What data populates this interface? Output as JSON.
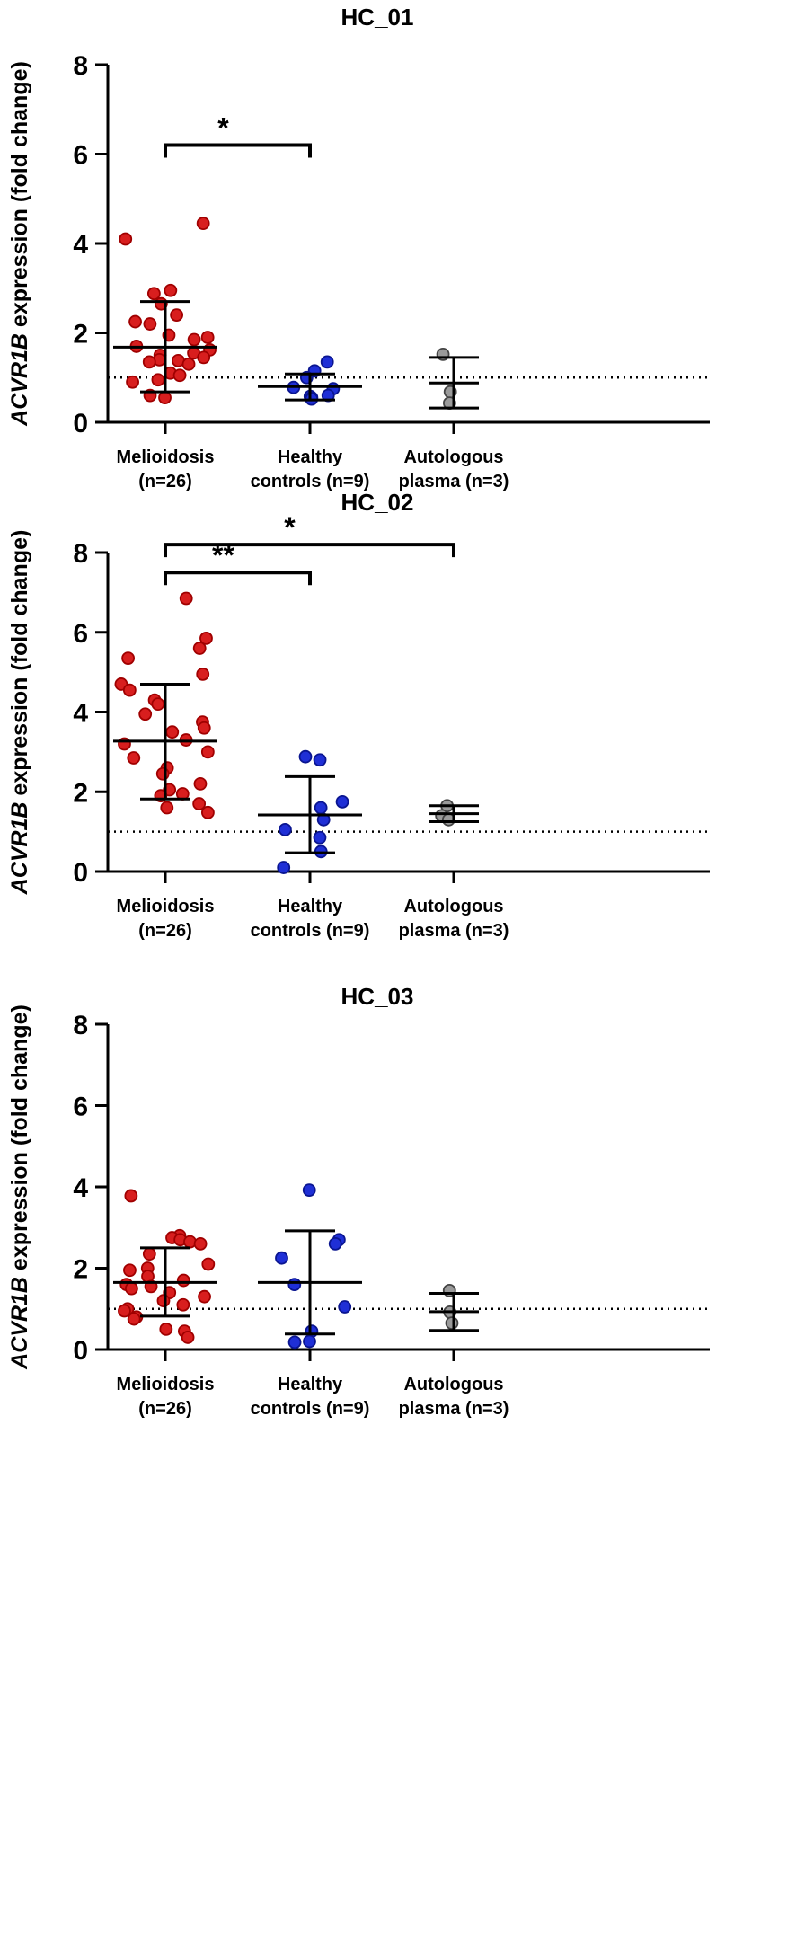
{
  "colors": {
    "melioidosis": "#d81e1e",
    "melioidosis_edge": "#a00000",
    "healthy": "#1f2fd6",
    "healthy_edge": "#0a1590",
    "autologous": "#9a9a9a",
    "autologous_edge": "#444444",
    "axis": "#000000"
  },
  "chart_data": [
    {
      "type": "scatter",
      "title": "HC_01",
      "ylabel_italic": "ACVR1B",
      "ylabel_rest": " expression (fold change)",
      "ylim": [
        0,
        8
      ],
      "yticks": [
        0,
        2,
        4,
        6,
        8
      ],
      "reference_line": 1,
      "categories": [
        {
          "line1": "Melioidosis",
          "line2": "(n=26)"
        },
        {
          "line1": "Healthy",
          "line2": "controls (n=9)"
        },
        {
          "line1": "Autologous",
          "line2": "plasma (n=3)"
        }
      ],
      "series": [
        {
          "name": "Melioidosis",
          "mean": 1.68,
          "sd_low": 0.68,
          "sd_high": 2.7,
          "values": [
            4.45,
            4.1,
            2.95,
            2.88,
            2.65,
            2.4,
            2.25,
            2.2,
            1.95,
            1.9,
            1.85,
            1.7,
            1.62,
            1.55,
            1.5,
            1.45,
            1.4,
            1.38,
            1.35,
            1.3,
            1.1,
            1.05,
            0.95,
            0.9,
            0.6,
            0.55
          ]
        },
        {
          "name": "Healthy controls",
          "mean": 0.8,
          "sd_low": 0.5,
          "sd_high": 1.08,
          "values": [
            1.35,
            1.15,
            1.0,
            0.78,
            0.75,
            0.6,
            0.58,
            0.55,
            0.52
          ]
        },
        {
          "name": "Autologous plasma",
          "mean": 0.88,
          "sd_low": 0.32,
          "sd_high": 1.45,
          "values": [
            1.52,
            0.68,
            0.43
          ]
        }
      ],
      "significance": [
        {
          "from": 0,
          "to": 1,
          "label": "*"
        }
      ]
    },
    {
      "type": "scatter",
      "title": "HC_02",
      "ylabel_italic": "ACVR1B",
      "ylabel_rest": " expression (fold change)",
      "ylim": [
        0,
        8
      ],
      "yticks": [
        0,
        2,
        4,
        6,
        8
      ],
      "reference_line": 1,
      "categories": [
        {
          "line1": "Melioidosis",
          "line2": "(n=26)"
        },
        {
          "line1": "Healthy",
          "line2": "controls (n=9)"
        },
        {
          "line1": "Autologous",
          "line2": "plasma (n=3)"
        }
      ],
      "series": [
        {
          "name": "Melioidosis",
          "mean": 3.27,
          "sd_low": 1.82,
          "sd_high": 4.7,
          "values": [
            6.85,
            5.85,
            5.6,
            5.35,
            4.95,
            4.7,
            4.55,
            4.3,
            4.2,
            3.95,
            3.75,
            3.6,
            3.5,
            3.3,
            3.2,
            3.0,
            2.85,
            2.6,
            2.45,
            2.2,
            2.05,
            1.95,
            1.9,
            1.7,
            1.6,
            1.48
          ]
        },
        {
          "name": "Healthy controls",
          "mean": 1.42,
          "sd_low": 0.47,
          "sd_high": 2.38,
          "values": [
            2.88,
            2.8,
            1.75,
            1.6,
            1.3,
            1.05,
            0.85,
            0.5,
            0.1
          ]
        },
        {
          "name": "Autologous plasma",
          "mean": 1.45,
          "sd_low": 1.25,
          "sd_high": 1.65,
          "values": [
            1.65,
            1.4,
            1.3
          ]
        }
      ],
      "significance": [
        {
          "from": 0,
          "to": 1,
          "label": "**"
        },
        {
          "from": 0,
          "to": 2,
          "label": "*"
        }
      ]
    },
    {
      "type": "scatter",
      "title": "HC_03",
      "ylabel_italic": "ACVR1B",
      "ylabel_rest": " expression (fold change)",
      "ylim": [
        0,
        8
      ],
      "yticks": [
        0,
        2,
        4,
        6,
        8
      ],
      "reference_line": 1,
      "categories": [
        {
          "line1": "Melioidosis",
          "line2": "(n=26)"
        },
        {
          "line1": "Healthy",
          "line2": "controls (n=9)"
        },
        {
          "line1": "Autologous",
          "line2": "plasma (n=3)"
        }
      ],
      "series": [
        {
          "name": "Melioidosis",
          "mean": 1.65,
          "sd_low": 0.82,
          "sd_high": 2.5,
          "values": [
            3.78,
            2.8,
            2.75,
            2.7,
            2.65,
            2.6,
            2.35,
            2.1,
            2.0,
            1.95,
            1.8,
            1.7,
            1.6,
            1.55,
            1.5,
            1.4,
            1.3,
            1.2,
            1.1,
            1.0,
            0.95,
            0.8,
            0.75,
            0.5,
            0.45,
            0.3
          ]
        },
        {
          "name": "Healthy controls",
          "mean": 1.65,
          "sd_low": 0.38,
          "sd_high": 2.92,
          "values": [
            3.92,
            2.7,
            2.6,
            2.25,
            1.6,
            1.05,
            0.45,
            0.2,
            0.18
          ]
        },
        {
          "name": "Autologous plasma",
          "mean": 0.93,
          "sd_low": 0.47,
          "sd_high": 1.38,
          "values": [
            1.45,
            0.92,
            0.65
          ]
        }
      ],
      "significance": []
    }
  ]
}
